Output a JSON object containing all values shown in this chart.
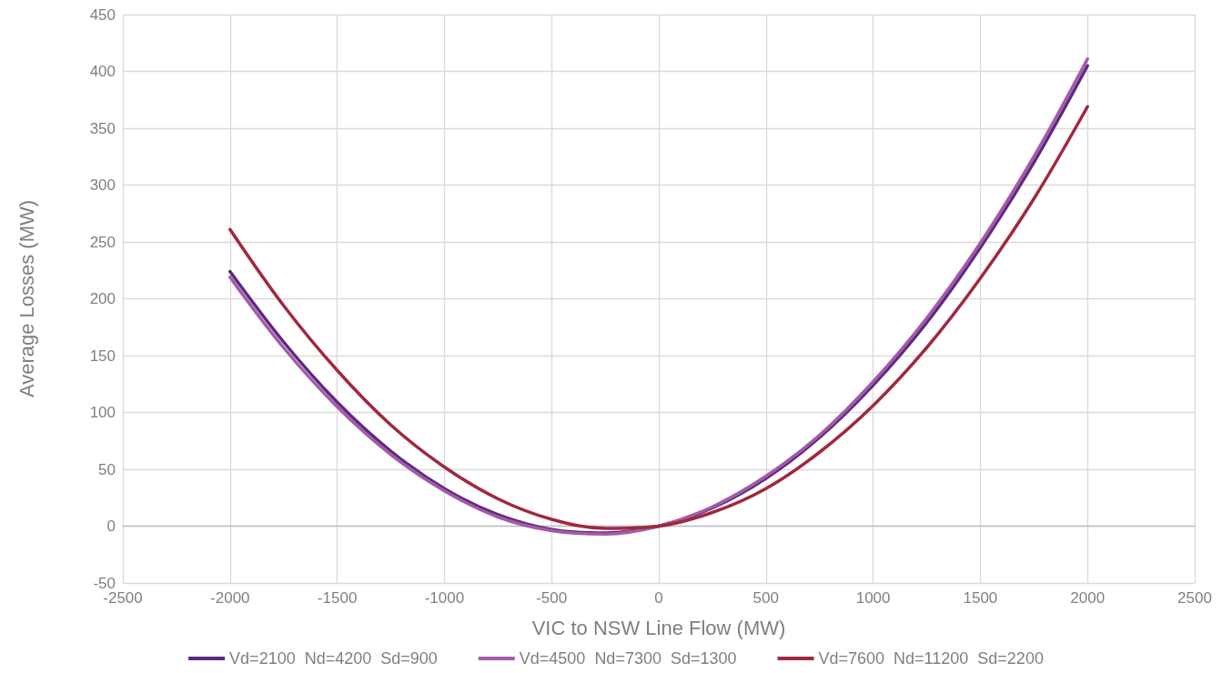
{
  "chart_data": {
    "type": "line",
    "xlabel": "VIC to NSW Line Flow (MW)",
    "ylabel": "Average Losses (MW)",
    "x": [
      -2000,
      -1750,
      -1500,
      -1250,
      -1000,
      -750,
      -500,
      -250,
      0,
      250,
      500,
      750,
      1000,
      1250,
      1500,
      1750,
      2000
    ],
    "series": [
      {
        "name": "Vd=2100  Nd=4200  Sd=900",
        "color": "#5b2a7e",
        "values": [
          224,
          162,
          109,
          66,
          33,
          10,
          -3,
          -6,
          0,
          16,
          42,
          78,
          124,
          179,
          245,
          320,
          405
        ]
      },
      {
        "name": "Vd=4500  Nd=7300  Sd=1300",
        "color": "#a55aa9",
        "values": [
          219,
          157,
          105,
          63,
          31,
          8,
          -4,
          -7,
          0,
          17,
          44,
          80,
          127,
          183,
          249,
          325,
          411
        ]
      },
      {
        "name": "Vd=7600  Nd=11200  Sd=2200",
        "color": "#a0283f",
        "values": [
          261,
          194,
          137,
          89,
          52,
          24,
          6,
          -2,
          0,
          12,
          33,
          65,
          106,
          157,
          218,
          288,
          369
        ]
      }
    ],
    "xlim": [
      -2500,
      2500
    ],
    "xticks": [
      -2500,
      -2000,
      -1500,
      -1000,
      -500,
      0,
      500,
      1000,
      1500,
      2000,
      2500
    ],
    "ylim": [
      -50,
      450
    ],
    "yticks": [
      -50,
      0,
      50,
      100,
      150,
      200,
      250,
      300,
      350,
      400,
      450
    ],
    "grid": true,
    "legend": "bottom",
    "marker": "none",
    "line_style": "solid"
  }
}
